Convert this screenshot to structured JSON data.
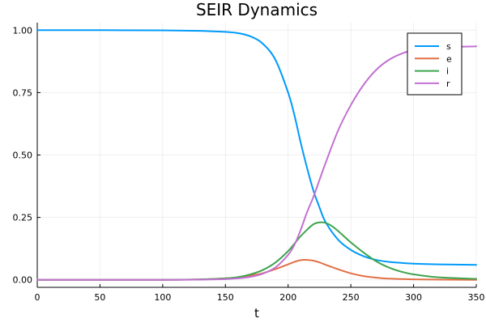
{
  "chart_data": {
    "type": "line",
    "title": "SEIR Dynamics",
    "xlabel": "t",
    "ylabel": "",
    "xlim": [
      0,
      350
    ],
    "ylim": [
      -0.03,
      1.03
    ],
    "xticks": [
      0,
      50,
      100,
      150,
      200,
      250,
      300,
      350
    ],
    "yticks": [
      0.0,
      0.25,
      0.5,
      0.75,
      1.0
    ],
    "xtick_labels": [
      "0",
      "50",
      "100",
      "150",
      "200",
      "250",
      "300",
      "350"
    ],
    "ytick_labels": [
      "0.00",
      "0.25",
      "0.50",
      "0.75",
      "1.00"
    ],
    "grid": true,
    "legend_position": "top-right",
    "series": [
      {
        "name": "s",
        "color": "#009AFA",
        "points": [
          [
            0,
            1.0
          ],
          [
            50,
            1.0
          ],
          [
            100,
            0.999
          ],
          [
            130,
            0.997
          ],
          [
            150,
            0.993
          ],
          [
            160,
            0.988
          ],
          [
            170,
            0.975
          ],
          [
            180,
            0.945
          ],
          [
            190,
            0.88
          ],
          [
            200,
            0.75
          ],
          [
            205,
            0.66
          ],
          [
            210,
            0.55
          ],
          [
            215,
            0.45
          ],
          [
            220,
            0.36
          ],
          [
            225,
            0.29
          ],
          [
            230,
            0.23
          ],
          [
            240,
            0.16
          ],
          [
            250,
            0.12
          ],
          [
            260,
            0.095
          ],
          [
            270,
            0.08
          ],
          [
            280,
            0.072
          ],
          [
            290,
            0.068
          ],
          [
            300,
            0.065
          ],
          [
            320,
            0.062
          ],
          [
            350,
            0.06
          ]
        ]
      },
      {
        "name": "e",
        "color": "#E26F46",
        "points": [
          [
            0,
            0.0
          ],
          [
            100,
            0.0
          ],
          [
            130,
            0.002
          ],
          [
            150,
            0.006
          ],
          [
            160,
            0.01
          ],
          [
            170,
            0.017
          ],
          [
            180,
            0.027
          ],
          [
            190,
            0.043
          ],
          [
            200,
            0.062
          ],
          [
            205,
            0.072
          ],
          [
            210,
            0.079
          ],
          [
            215,
            0.08
          ],
          [
            220,
            0.077
          ],
          [
            225,
            0.07
          ],
          [
            230,
            0.06
          ],
          [
            240,
            0.042
          ],
          [
            250,
            0.026
          ],
          [
            260,
            0.015
          ],
          [
            270,
            0.009
          ],
          [
            280,
            0.005
          ],
          [
            300,
            0.002
          ],
          [
            350,
            0.0
          ]
        ]
      },
      {
        "name": "i",
        "color": "#3DA44D",
        "points": [
          [
            0,
            0.0
          ],
          [
            100,
            0.0
          ],
          [
            130,
            0.002
          ],
          [
            150,
            0.006
          ],
          [
            160,
            0.011
          ],
          [
            170,
            0.022
          ],
          [
            180,
            0.04
          ],
          [
            190,
            0.07
          ],
          [
            200,
            0.115
          ],
          [
            205,
            0.145
          ],
          [
            210,
            0.175
          ],
          [
            215,
            0.2
          ],
          [
            220,
            0.222
          ],
          [
            225,
            0.23
          ],
          [
            230,
            0.228
          ],
          [
            235,
            0.215
          ],
          [
            240,
            0.195
          ],
          [
            250,
            0.15
          ],
          [
            260,
            0.11
          ],
          [
            270,
            0.075
          ],
          [
            280,
            0.05
          ],
          [
            290,
            0.033
          ],
          [
            300,
            0.022
          ],
          [
            320,
            0.01
          ],
          [
            350,
            0.004
          ]
        ]
      },
      {
        "name": "r",
        "color": "#C271D2",
        "points": [
          [
            0,
            0.0
          ],
          [
            100,
            0.0
          ],
          [
            130,
            0.001
          ],
          [
            150,
            0.003
          ],
          [
            160,
            0.006
          ],
          [
            170,
            0.012
          ],
          [
            180,
            0.025
          ],
          [
            190,
            0.05
          ],
          [
            200,
            0.1
          ],
          [
            205,
            0.14
          ],
          [
            210,
            0.2
          ],
          [
            215,
            0.27
          ],
          [
            220,
            0.33
          ],
          [
            225,
            0.4
          ],
          [
            230,
            0.47
          ],
          [
            240,
            0.6
          ],
          [
            250,
            0.7
          ],
          [
            260,
            0.78
          ],
          [
            270,
            0.84
          ],
          [
            280,
            0.88
          ],
          [
            290,
            0.905
          ],
          [
            300,
            0.92
          ],
          [
            320,
            0.93
          ],
          [
            350,
            0.935
          ]
        ]
      }
    ]
  }
}
